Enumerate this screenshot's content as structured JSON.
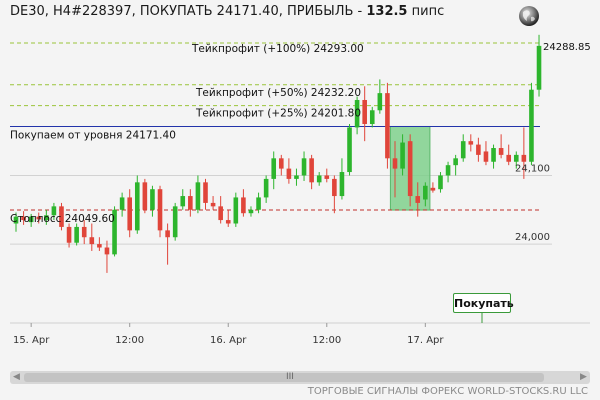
{
  "header": {
    "prefix": "DE30, H4#228397, ПОКУПАТЬ 24171.40, ПРИБЫЛЬ - ",
    "profit": "132.5",
    "suffix": " пипс"
  },
  "buy_button_label": "Покупать",
  "footer_text": "ТОРГОВЫЕ СИГНАЛЫ ФОРЕКС WORLD-STOCKS.RU LLC",
  "scroll_grip": "III",
  "colors": {
    "up": "#2db52d",
    "down": "#e0453a",
    "zone": "#7fd08c"
  },
  "chart_data": {
    "type": "candlestick",
    "ylim": [
      23885,
      24312
    ],
    "current_price_label": "24288.85",
    "y_ticks": [
      {
        "value": 24100,
        "label": "24,100"
      },
      {
        "value": 24000,
        "label": "24,000"
      }
    ],
    "x_ticks": [
      {
        "index": 2,
        "label": "15. Apr"
      },
      {
        "index": 15,
        "label": "12:00"
      },
      {
        "index": 28,
        "label": "16. Apr"
      },
      {
        "index": 41,
        "label": "12:00"
      },
      {
        "index": 54,
        "label": "17. Apr"
      }
    ],
    "levels": [
      {
        "name": "tp100",
        "label": "Тейкпрофит (+100%) 24293.00",
        "value": 24293.0,
        "style": "dash-green"
      },
      {
        "name": "tp50",
        "label": "Тейкпрофит (+50%) 24232.20",
        "value": 24232.2,
        "style": "dash-green"
      },
      {
        "name": "tp25",
        "label": "Тейкпрофит (+25%) 24201.80",
        "value": 24201.8,
        "style": "dash-green"
      },
      {
        "name": "entry",
        "label": "Покупаем от уровня 24171.40",
        "value": 24171.4,
        "style": "solid-blue"
      },
      {
        "name": "stop",
        "label": "Стоплосс 24049.60",
        "value": 24049.6,
        "style": "dash-red"
      }
    ],
    "zone": {
      "i_start": 50,
      "i_end": 54,
      "top": 24171.4,
      "bottom": 24049.6
    },
    "candles": [
      {
        "o": 24030,
        "h": 24046,
        "l": 24018,
        "c": 24040
      },
      {
        "o": 24040,
        "h": 24048,
        "l": 24028,
        "c": 24035
      },
      {
        "o": 24032,
        "h": 24044,
        "l": 24025,
        "c": 24040
      },
      {
        "o": 24040,
        "h": 24046,
        "l": 24030,
        "c": 24036
      },
      {
        "o": 24035,
        "h": 24050,
        "l": 24028,
        "c": 24042
      },
      {
        "o": 24042,
        "h": 24060,
        "l": 24035,
        "c": 24055
      },
      {
        "o": 24055,
        "h": 24060,
        "l": 24020,
        "c": 24025
      },
      {
        "o": 24025,
        "h": 24030,
        "l": 23995,
        "c": 24002
      },
      {
        "o": 24002,
        "h": 24030,
        "l": 23998,
        "c": 24025
      },
      {
        "o": 24025,
        "h": 24035,
        "l": 24000,
        "c": 24010
      },
      {
        "o": 24010,
        "h": 24030,
        "l": 23990,
        "c": 24000
      },
      {
        "o": 24000,
        "h": 24010,
        "l": 23990,
        "c": 23995
      },
      {
        "o": 23995,
        "h": 24005,
        "l": 23958,
        "c": 23985
      },
      {
        "o": 23985,
        "h": 24055,
        "l": 23982,
        "c": 24050
      },
      {
        "o": 24050,
        "h": 24075,
        "l": 24040,
        "c": 24068
      },
      {
        "o": 24068,
        "h": 24080,
        "l": 24010,
        "c": 24020
      },
      {
        "o": 24020,
        "h": 24100,
        "l": 24015,
        "c": 24090
      },
      {
        "o": 24090,
        "h": 24095,
        "l": 24045,
        "c": 24050
      },
      {
        "o": 24050,
        "h": 24085,
        "l": 24040,
        "c": 24080
      },
      {
        "o": 24080,
        "h": 24085,
        "l": 24010,
        "c": 24020
      },
      {
        "o": 24020,
        "h": 24030,
        "l": 23970,
        "c": 24010
      },
      {
        "o": 24010,
        "h": 24060,
        "l": 24005,
        "c": 24055
      },
      {
        "o": 24055,
        "h": 24080,
        "l": 24050,
        "c": 24070
      },
      {
        "o": 24070,
        "h": 24080,
        "l": 24040,
        "c": 24050
      },
      {
        "o": 24050,
        "h": 24100,
        "l": 24045,
        "c": 24090
      },
      {
        "o": 24090,
        "h": 24095,
        "l": 24050,
        "c": 24060
      },
      {
        "o": 24060,
        "h": 24070,
        "l": 24050,
        "c": 24055
      },
      {
        "o": 24055,
        "h": 24070,
        "l": 24030,
        "c": 24035
      },
      {
        "o": 24035,
        "h": 24050,
        "l": 24025,
        "c": 24030
      },
      {
        "o": 24030,
        "h": 24075,
        "l": 24025,
        "c": 24068
      },
      {
        "o": 24068,
        "h": 24080,
        "l": 24040,
        "c": 24045
      },
      {
        "o": 24045,
        "h": 24055,
        "l": 24040,
        "c": 24050
      },
      {
        "o": 24050,
        "h": 24075,
        "l": 24045,
        "c": 24068
      },
      {
        "o": 24068,
        "h": 24100,
        "l": 24060,
        "c": 24095
      },
      {
        "o": 24095,
        "h": 24135,
        "l": 24080,
        "c": 24125
      },
      {
        "o": 24125,
        "h": 24130,
        "l": 24100,
        "c": 24110
      },
      {
        "o": 24110,
        "h": 24125,
        "l": 24088,
        "c": 24095
      },
      {
        "o": 24095,
        "h": 24110,
        "l": 24085,
        "c": 24100
      },
      {
        "o": 24100,
        "h": 24135,
        "l": 24092,
        "c": 24125
      },
      {
        "o": 24125,
        "h": 24130,
        "l": 24080,
        "c": 24090
      },
      {
        "o": 24090,
        "h": 24105,
        "l": 24085,
        "c": 24100
      },
      {
        "o": 24100,
        "h": 24110,
        "l": 24090,
        "c": 24095
      },
      {
        "o": 24095,
        "h": 24100,
        "l": 24045,
        "c": 24070
      },
      {
        "o": 24070,
        "h": 24125,
        "l": 24065,
        "c": 24105
      },
      {
        "o": 24105,
        "h": 24175,
        "l": 24100,
        "c": 24170
      },
      {
        "o": 24170,
        "h": 24215,
        "l": 24160,
        "c": 24210
      },
      {
        "o": 24210,
        "h": 24230,
        "l": 24150,
        "c": 24175
      },
      {
        "o": 24175,
        "h": 24200,
        "l": 24170,
        "c": 24195
      },
      {
        "o": 24195,
        "h": 24240,
        "l": 24190,
        "c": 24220
      },
      {
        "o": 24220,
        "h": 24235,
        "l": 24110,
        "c": 24125
      },
      {
        "o": 24125,
        "h": 24150,
        "l": 24068,
        "c": 24110
      },
      {
        "o": 24110,
        "h": 24160,
        "l": 24100,
        "c": 24148
      },
      {
        "o": 24150,
        "h": 24160,
        "l": 24055,
        "c": 24070
      },
      {
        "o": 24070,
        "h": 24090,
        "l": 24040,
        "c": 24060
      },
      {
        "o": 24065,
        "h": 24090,
        "l": 24055,
        "c": 24085
      },
      {
        "o": 24082,
        "h": 24090,
        "l": 24075,
        "c": 24078
      },
      {
        "o": 24080,
        "h": 24105,
        "l": 24075,
        "c": 24100
      },
      {
        "o": 24100,
        "h": 24120,
        "l": 24090,
        "c": 24115
      },
      {
        "o": 24115,
        "h": 24130,
        "l": 24100,
        "c": 24125
      },
      {
        "o": 24125,
        "h": 24160,
        "l": 24120,
        "c": 24150
      },
      {
        "o": 24150,
        "h": 24160,
        "l": 24135,
        "c": 24145
      },
      {
        "o": 24145,
        "h": 24155,
        "l": 24120,
        "c": 24130
      },
      {
        "o": 24135,
        "h": 24150,
        "l": 24115,
        "c": 24120
      },
      {
        "o": 24120,
        "h": 24145,
        "l": 24110,
        "c": 24140
      },
      {
        "o": 24140,
        "h": 24160,
        "l": 24125,
        "c": 24130
      },
      {
        "o": 24130,
        "h": 24145,
        "l": 24115,
        "c": 24120
      },
      {
        "o": 24120,
        "h": 24135,
        "l": 24110,
        "c": 24130
      },
      {
        "o": 24130,
        "h": 24170,
        "l": 24095,
        "c": 24120
      },
      {
        "o": 24120,
        "h": 24235,
        "l": 24115,
        "c": 24225
      },
      {
        "o": 24225,
        "h": 24305,
        "l": 24215,
        "c": 24288.85
      }
    ]
  }
}
